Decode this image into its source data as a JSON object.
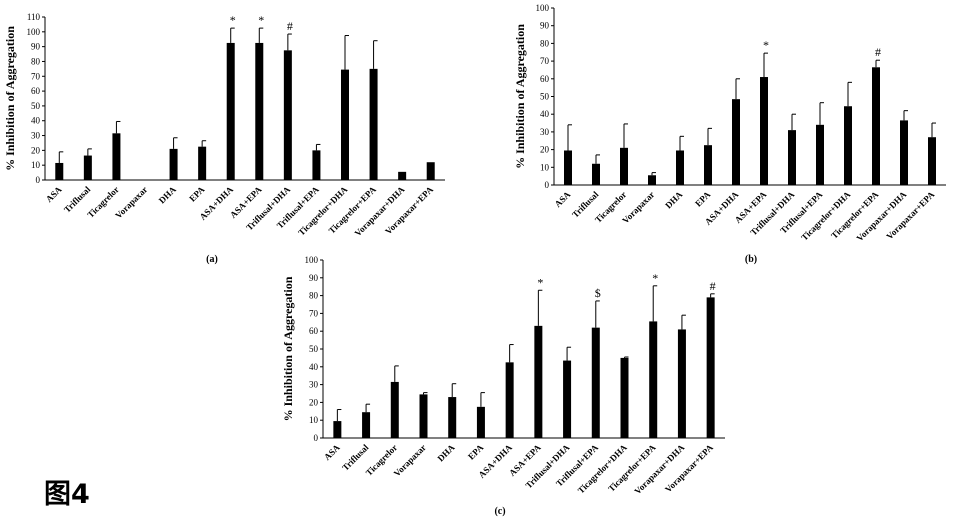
{
  "figure_caption": "图4",
  "chart_data": [
    {
      "type": "bar",
      "panel_label": "(a)",
      "ylabel": "% Inhibition of Aggregation",
      "ylim": [
        0,
        110
      ],
      "ytick_step": 10,
      "grid": false,
      "categories": [
        "ASA",
        "Triflusal",
        "Ticagrelor",
        "Vorapaxar",
        "DHA",
        "EPA",
        "ASA+DHA",
        "ASA+EPA",
        "Triflusal+DHA",
        "Triflusal+EPA",
        "Ticagrelor+DHA",
        "Ticagrelor+EPA",
        "Vorapaxar+DHA",
        "Vorapaxar+EPA"
      ],
      "values": [
        11.5,
        16.5,
        31.5,
        0,
        21,
        22.5,
        92.5,
        92.5,
        87.5,
        20,
        74.5,
        75,
        5.5,
        12
      ],
      "errors": [
        7.5,
        4.5,
        8,
        0,
        7.5,
        4,
        10,
        10,
        11,
        4,
        23,
        19,
        0,
        0
      ],
      "significance": [
        "",
        "",
        "",
        "",
        "",
        "",
        "*",
        "*",
        "#",
        "",
        "",
        "",
        "",
        ""
      ]
    },
    {
      "type": "bar",
      "panel_label": "(b)",
      "ylabel": "% Inhibition of Aggregation",
      "ylim": [
        0,
        100
      ],
      "ytick_step": 10,
      "grid": false,
      "categories": [
        "ASA",
        "Triflusal",
        "Ticagrelor",
        "Vorapaxar",
        "DHA",
        "EPA",
        "ASA+DHA",
        "ASA+EPA",
        "Triflusal+DHA",
        "Triflusal+EPA",
        "Ticagrelor+DHA",
        "Ticagrelor+EPA",
        "Vorapaxar+DHA",
        "Vorapaxar+EPA"
      ],
      "values": [
        19.5,
        12,
        21,
        5.5,
        19.5,
        22.5,
        48.5,
        61,
        31,
        34,
        44.5,
        66.5,
        36.5,
        27
      ],
      "errors": [
        14.5,
        5,
        13.5,
        1.5,
        8,
        9.5,
        11.5,
        13.5,
        9,
        12.5,
        13.5,
        4,
        5.5,
        8
      ],
      "significance": [
        "",
        "",
        "",
        "",
        "",
        "",
        "",
        "*",
        "",
        "",
        "",
        "#",
        "",
        ""
      ]
    },
    {
      "type": "bar",
      "panel_label": "(c)",
      "ylabel": "% Inhibition of Aggregation",
      "ylim": [
        0,
        100
      ],
      "ytick_step": 10,
      "grid": false,
      "categories": [
        "ASA",
        "Triflusal",
        "Ticagrelor",
        "Vorapaxar",
        "DHA",
        "EPA",
        "ASA+DHA",
        "ASA+EPA",
        "Triflusal+DHA",
        "Triflusal+EPA",
        "Ticagrelor+DHA",
        "Ticagrelor+EPA",
        "Vorapaxar+DHA",
        "Vorapaxar+EPA"
      ],
      "values": [
        9.5,
        14.5,
        31.5,
        24.5,
        23,
        17.5,
        42.5,
        63,
        43.5,
        62,
        45,
        65.5,
        61,
        79
      ],
      "errors": [
        6.5,
        4.5,
        9,
        1,
        7.5,
        8,
        10,
        20,
        7.5,
        15,
        0.5,
        20,
        8,
        2
      ],
      "significance": [
        "",
        "",
        "",
        "",
        "",
        "",
        "",
        "*",
        "",
        "$",
        "",
        "*",
        "",
        "#"
      ]
    }
  ]
}
